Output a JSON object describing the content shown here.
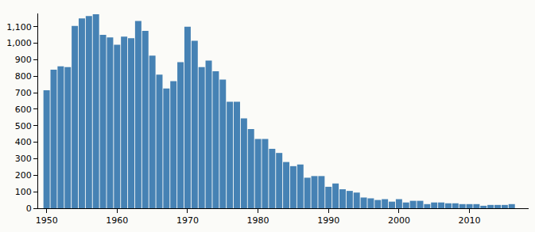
{
  "chart_data": {
    "type": "bar",
    "x": [
      1950,
      1951,
      1952,
      1953,
      1954,
      1955,
      1956,
      1957,
      1958,
      1959,
      1960,
      1961,
      1962,
      1963,
      1964,
      1965,
      1966,
      1967,
      1968,
      1969,
      1970,
      1971,
      1972,
      1973,
      1974,
      1975,
      1976,
      1977,
      1978,
      1979,
      1980,
      1981,
      1982,
      1983,
      1984,
      1985,
      1986,
      1987,
      1988,
      1989,
      1990,
      1991,
      1992,
      1993,
      1994,
      1995,
      1996,
      1997,
      1998,
      1999,
      2000,
      2001,
      2002,
      2003,
      2004,
      2005,
      2006,
      2007,
      2008,
      2009,
      2010,
      2011,
      2012,
      2013,
      2014,
      2015,
      2016
    ],
    "values": [
      715,
      840,
      860,
      855,
      1105,
      1150,
      1165,
      1175,
      1050,
      1035,
      990,
      1040,
      1030,
      1135,
      1075,
      925,
      810,
      725,
      770,
      885,
      1100,
      1015,
      855,
      895,
      830,
      780,
      645,
      645,
      545,
      480,
      420,
      420,
      360,
      335,
      280,
      255,
      265,
      185,
      195,
      195,
      130,
      150,
      115,
      105,
      95,
      65,
      60,
      50,
      55,
      40,
      55,
      35,
      45,
      45,
      25,
      35,
      35,
      30,
      30,
      25,
      25,
      25,
      15,
      20,
      20,
      20,
      25
    ],
    "color": "#4682b4",
    "xlim": [
      1948.8,
      2018.4
    ],
    "xticks": [
      1950,
      1960,
      1970,
      1980,
      1990,
      2000,
      2010
    ],
    "ylim": [
      0,
      1180
    ],
    "yticks": [
      0,
      100,
      200,
      300,
      400,
      500,
      600,
      700,
      800,
      900,
      {
        "value": 1000,
        "label": "1,000"
      },
      {
        "value": 1100,
        "label": "1,100"
      }
    ],
    "grid": false
  }
}
